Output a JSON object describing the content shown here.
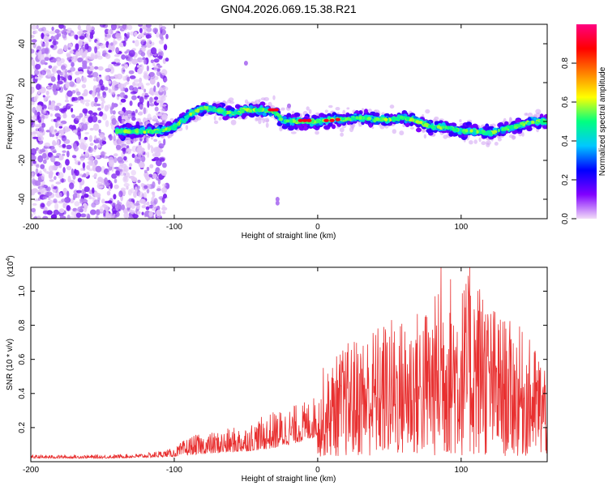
{
  "chart_data": [
    {
      "type": "heatmap",
      "title": "GN04.2026.069.15.38.R21",
      "xlabel": "Height of straight line (km)",
      "ylabel": "Frequency (Hz)",
      "xlim": [
        -200,
        160
      ],
      "ylim": [
        -50,
        50
      ],
      "xticks": [
        -200,
        -100,
        0,
        100
      ],
      "yticks": [
        -40,
        -20,
        0,
        20,
        40
      ],
      "colorbar": {
        "label": "Normalized spectral amplitude",
        "range": [
          0,
          1
        ],
        "ticks": [
          "0.0",
          "0.2",
          "0.4",
          "0.6",
          "0.8"
        ],
        "colors": [
          "#f2dcf8",
          "#8000ff",
          "#0000ff",
          "#00c8ff",
          "#00ff80",
          "#ffff00",
          "#ff8000",
          "#ff0000",
          "#ff0080"
        ]
      },
      "ridge": {
        "x": [
          -140,
          -110,
          -100,
          -90,
          -80,
          -70,
          -60,
          -50,
          -40,
          -30,
          -25,
          -20,
          -10,
          0,
          10,
          20,
          30,
          40,
          50,
          60,
          70,
          80,
          90,
          100,
          110,
          120,
          130,
          140,
          150,
          160
        ],
        "y": [
          -5,
          -5,
          -3,
          3,
          7,
          6,
          4,
          6,
          6,
          5,
          1,
          0,
          0,
          0,
          1,
          1,
          2,
          1,
          1,
          2,
          0,
          -3,
          -3,
          -5,
          -5,
          -6,
          -4,
          -2,
          0,
          0
        ]
      },
      "noise_region": {
        "x_from": -200,
        "x_to": -105
      }
    },
    {
      "type": "line",
      "xlabel": "Height of straight line (km)",
      "ylabel": "SNR (10 * v/v)",
      "yscale_label": "(x10",
      "yscale_exp": "4",
      "yscale_close": ")",
      "xlim": [
        -200,
        160
      ],
      "ylim": [
        0,
        1.14
      ],
      "xticks": [
        -200,
        -100,
        0,
        100
      ],
      "yticks": [
        "0.2",
        "0.4",
        "0.6",
        "0.8",
        "1.0"
      ],
      "color": "#e83030",
      "envelope": {
        "x": [
          -200,
          -150,
          -120,
          -100,
          -90,
          -70,
          -50,
          -30,
          -10,
          0,
          10,
          20,
          30,
          40,
          50,
          60,
          70,
          80,
          90,
          100,
          110,
          120,
          130,
          140,
          150,
          160
        ],
        "baseline": [
          0.02,
          0.02,
          0.025,
          0.03,
          0.04,
          0.05,
          0.06,
          0.08,
          0.12,
          0.15,
          0.2,
          0.2,
          0.22,
          0.22,
          0.2,
          0.2,
          0.2,
          0.2,
          0.22,
          0.22,
          0.22,
          0.2,
          0.2,
          0.2,
          0.2,
          0.2
        ],
        "peak": [
          0.04,
          0.04,
          0.05,
          0.08,
          0.15,
          0.18,
          0.22,
          0.3,
          0.35,
          0.4,
          0.6,
          0.7,
          0.75,
          0.8,
          0.85,
          0.85,
          0.9,
          0.95,
          1.14,
          1.05,
          1.14,
          0.95,
          0.85,
          0.8,
          0.7,
          0.6
        ]
      },
      "spikes": [
        {
          "x": 4,
          "y": 0.55
        },
        {
          "x": 86,
          "y": 1.14
        },
        {
          "x": 106,
          "y": 1.14
        },
        {
          "x": 115,
          "y": 0.95
        }
      ]
    }
  ]
}
